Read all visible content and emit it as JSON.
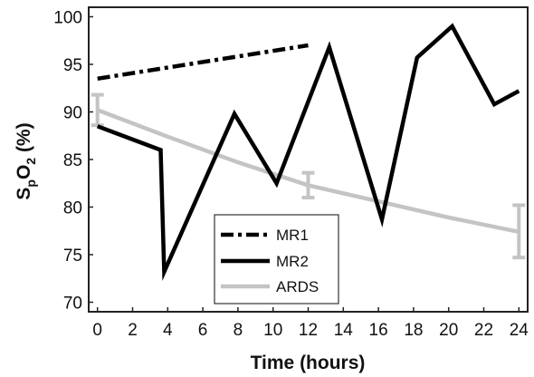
{
  "chart_data": {
    "type": "line",
    "xlabel": "Time (hours)",
    "ylabel": {
      "main": "S",
      "sub1": "p",
      "mid": "O",
      "sub2": "2",
      "unit": " (%)"
    },
    "xlim": [
      -0.5,
      24.5
    ],
    "ylim": [
      69,
      101
    ],
    "xticks": [
      0,
      2,
      4,
      6,
      8,
      10,
      12,
      14,
      16,
      18,
      20,
      22,
      24
    ],
    "yticks": [
      70,
      75,
      80,
      85,
      90,
      95,
      100
    ],
    "grid": false,
    "legend_position": "bottom-center",
    "series": [
      {
        "name": "MR1",
        "color": "#000000",
        "style": "dash-dot",
        "x": [
          0,
          12
        ],
        "y": [
          93.5,
          97.0
        ]
      },
      {
        "name": "MR2",
        "color": "#000000",
        "style": "solid",
        "x": [
          0,
          3.6,
          3.8,
          7.8,
          10.2,
          13.2,
          16.2,
          18.2,
          20.2,
          22.6,
          24
        ],
        "y": [
          88.5,
          86.0,
          73.2,
          89.8,
          82.5,
          96.8,
          78.7,
          95.7,
          99.0,
          90.8,
          92.2
        ]
      },
      {
        "name": "ARDS",
        "color": "#c4c4c4",
        "style": "solid",
        "x": [
          0,
          4,
          8,
          12,
          16,
          20,
          24
        ],
        "y": [
          90.2,
          87.4,
          84.7,
          82.3,
          80.6,
          78.9,
          77.4
        ],
        "errorbars": [
          {
            "x": 0,
            "low": 88.6,
            "high": 91.8
          },
          {
            "x": 12,
            "low": 81.0,
            "high": 83.6
          },
          {
            "x": 24,
            "low": 74.7,
            "high": 80.2
          }
        ]
      }
    ]
  }
}
